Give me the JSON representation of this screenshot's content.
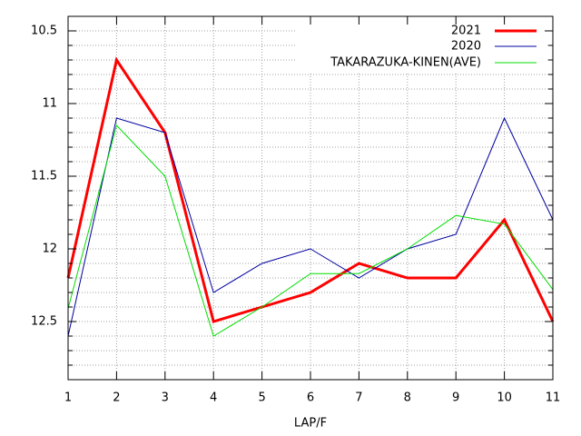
{
  "chart_data": {
    "type": "line",
    "x_label": "LAP/F",
    "x": [
      1,
      2,
      3,
      4,
      5,
      6,
      7,
      8,
      9,
      10,
      11
    ],
    "xlim": [
      1,
      11
    ],
    "xticks": [
      1,
      2,
      3,
      4,
      5,
      6,
      7,
      8,
      9,
      10,
      11
    ],
    "ylim": [
      10.4,
      12.9
    ],
    "y_reversed": true,
    "yticks": [
      10.5,
      11,
      11.5,
      12,
      12.5
    ],
    "y_minor_ticks": [
      10.6,
      10.7,
      10.8,
      10.9,
      11.1,
      11.2,
      11.3,
      11.4,
      11.6,
      11.7,
      11.8,
      11.9,
      12.1,
      12.2,
      12.3,
      12.4,
      12.6,
      12.7,
      12.8
    ],
    "grid": true,
    "legend": "top-right",
    "series": [
      {
        "name": "2021",
        "color": "#ff0000",
        "width": 3,
        "values": [
          12.2,
          10.7,
          11.2,
          12.5,
          12.4,
          12.3,
          12.1,
          12.2,
          12.2,
          11.8,
          12.5
        ]
      },
      {
        "name": "2020",
        "color": "#0000a0",
        "width": 1,
        "values": [
          12.6,
          11.1,
          11.2,
          12.3,
          12.1,
          12.0,
          12.2,
          12.0,
          11.9,
          11.1,
          11.8
        ]
      },
      {
        "name": "TAKARAZUKA-KINEN(AVE)",
        "color": "#00dd00",
        "width": 1,
        "values": [
          12.41,
          11.15,
          11.5,
          12.6,
          12.4,
          12.17,
          12.17,
          12.0,
          11.77,
          11.83,
          12.28
        ]
      }
    ]
  }
}
